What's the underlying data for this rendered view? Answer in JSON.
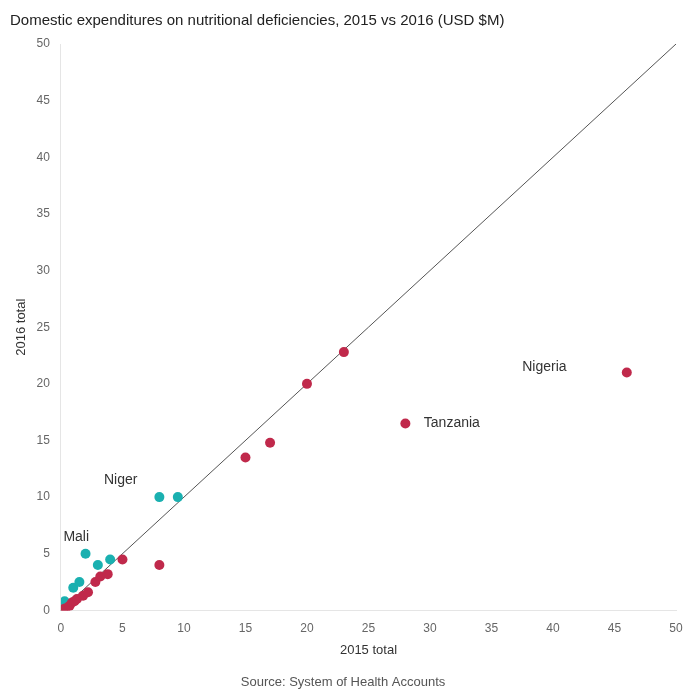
{
  "chart_data": {
    "type": "scatter",
    "title": "Domestic expenditures on nutritional deficiencies, 2015 vs 2016 (USD $M)",
    "xlabel": "2015 total",
    "ylabel": "2016 total",
    "source": "Source: System of Health Accounts",
    "xlim": [
      0,
      50
    ],
    "ylim": [
      0,
      50
    ],
    "xticks": [
      0,
      5,
      10,
      15,
      20,
      25,
      30,
      35,
      40,
      45,
      50
    ],
    "yticks": [
      0,
      5,
      10,
      15,
      20,
      25,
      30,
      35,
      40,
      45,
      50
    ],
    "grid": false,
    "series": [
      {
        "type": "line",
        "color": "#555555",
        "x": [
          0,
          50
        ],
        "values": [
          0,
          50
        ]
      },
      {
        "color": "#c0294b",
        "x": [
          0.2,
          0.4,
          0.7,
          0.9,
          1.1,
          1.3,
          1.8,
          2.2,
          2.8,
          3.2,
          3.8,
          5.0,
          8.0,
          15.0,
          17.0,
          20.0,
          23.0,
          28.0,
          46.0
        ],
        "values": [
          0.1,
          0.2,
          0.4,
          0.7,
          0.8,
          1.0,
          1.3,
          1.6,
          2.5,
          3.0,
          3.2,
          4.5,
          4.0,
          13.5,
          14.8,
          20.0,
          22.8,
          16.5,
          21.0
        ]
      },
      {
        "color": "#1ab0b0",
        "x": [
          0.3,
          1.0,
          1.5,
          2.0,
          3.0,
          4.0,
          8.0,
          9.5
        ],
        "values": [
          0.8,
          2.0,
          2.5,
          5.0,
          4.0,
          4.5,
          10.0,
          10.0
        ]
      }
    ],
    "annotations": [
      {
        "text": "Mali",
        "x": 0.2,
        "y": 6.5
      },
      {
        "text": "Niger",
        "x": 3.5,
        "y": 11.5
      },
      {
        "text": "Tanzania",
        "x": 29.5,
        "y": 16.5
      },
      {
        "text": "Nigeria",
        "x": 37.5,
        "y": 21.5
      }
    ]
  }
}
